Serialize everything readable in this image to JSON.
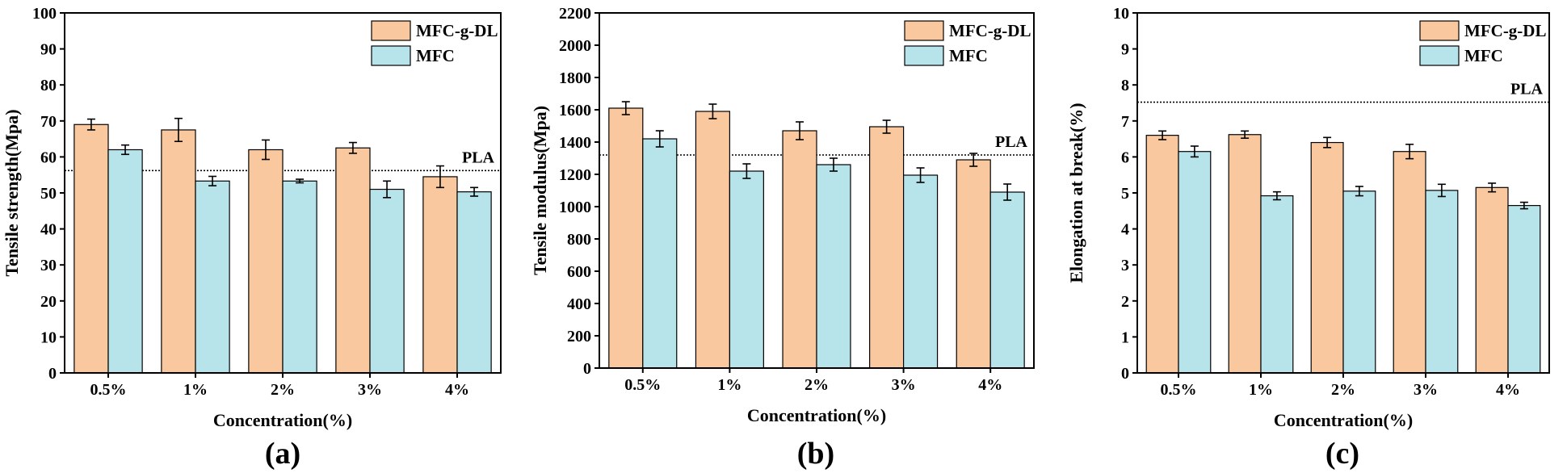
{
  "colors": {
    "mfc_g_dl": "#fac89e",
    "mfc": "#b7e3ea",
    "stroke": "#000000"
  },
  "chart_data": [
    {
      "type": "bar",
      "panel_label": "(a)",
      "categories": [
        "0.5%",
        "1%",
        "2%",
        "3%",
        "4%"
      ],
      "series": [
        {
          "name": "MFC-g-DL",
          "values": [
            69,
            67.5,
            62,
            62.5,
            54.5
          ],
          "errors": [
            1.5,
            3.2,
            2.7,
            1.5,
            3.0
          ]
        },
        {
          "name": "MFC",
          "values": [
            62,
            53.3,
            53.3,
            51,
            50.3
          ],
          "errors": [
            1.3,
            1.3,
            0.5,
            2.3,
            1.2
          ]
        }
      ],
      "reference_line": {
        "label": "PLA",
        "value": 56.2
      },
      "xlabel": "Concentration(%)",
      "ylabel": "Tensile strength(Mpa)",
      "ylim": [
        0,
        100
      ],
      "yticks": [
        0,
        10,
        20,
        30,
        40,
        50,
        60,
        70,
        80,
        90,
        100
      ],
      "legend_position": "top-right"
    },
    {
      "type": "bar",
      "panel_label": "(b)",
      "categories": [
        "0.5%",
        "1%",
        "2%",
        "3%",
        "4%"
      ],
      "series": [
        {
          "name": "MFC-g-DL",
          "values": [
            1610,
            1590,
            1470,
            1495,
            1290
          ],
          "errors": [
            40,
            45,
            55,
            40,
            40
          ]
        },
        {
          "name": "MFC",
          "values": [
            1420,
            1220,
            1260,
            1195,
            1090
          ],
          "errors": [
            50,
            45,
            40,
            45,
            50
          ]
        }
      ],
      "reference_line": {
        "label": "PLA",
        "value": 1320
      },
      "xlabel": "Concentration(%)",
      "ylabel": "Tensile modulus(Mpa)",
      "ylim": [
        0,
        2200
      ],
      "yticks": [
        0,
        200,
        400,
        600,
        800,
        1000,
        1200,
        1400,
        1600,
        1800,
        2000,
        2200
      ],
      "legend_position": "top-right"
    },
    {
      "type": "bar",
      "panel_label": "(c)",
      "categories": [
        "0.5%",
        "1%",
        "2%",
        "3%",
        "4%"
      ],
      "series": [
        {
          "name": "MFC-g-DL",
          "values": [
            6.6,
            6.62,
            6.4,
            6.15,
            5.15
          ],
          "errors": [
            0.12,
            0.1,
            0.14,
            0.2,
            0.12
          ]
        },
        {
          "name": "MFC",
          "values": [
            6.15,
            4.92,
            5.05,
            5.07,
            4.65
          ],
          "errors": [
            0.15,
            0.11,
            0.13,
            0.17,
            0.09
          ]
        }
      ],
      "reference_line": {
        "label": "PLA",
        "value": 7.52
      },
      "xlabel": "Concentration(%)",
      "ylabel": "Elongation at break(%)",
      "ylim": [
        0,
        10
      ],
      "yticks": [
        0,
        1,
        2,
        3,
        4,
        5,
        6,
        7,
        8,
        9,
        10
      ],
      "legend_position": "top-right"
    }
  ]
}
